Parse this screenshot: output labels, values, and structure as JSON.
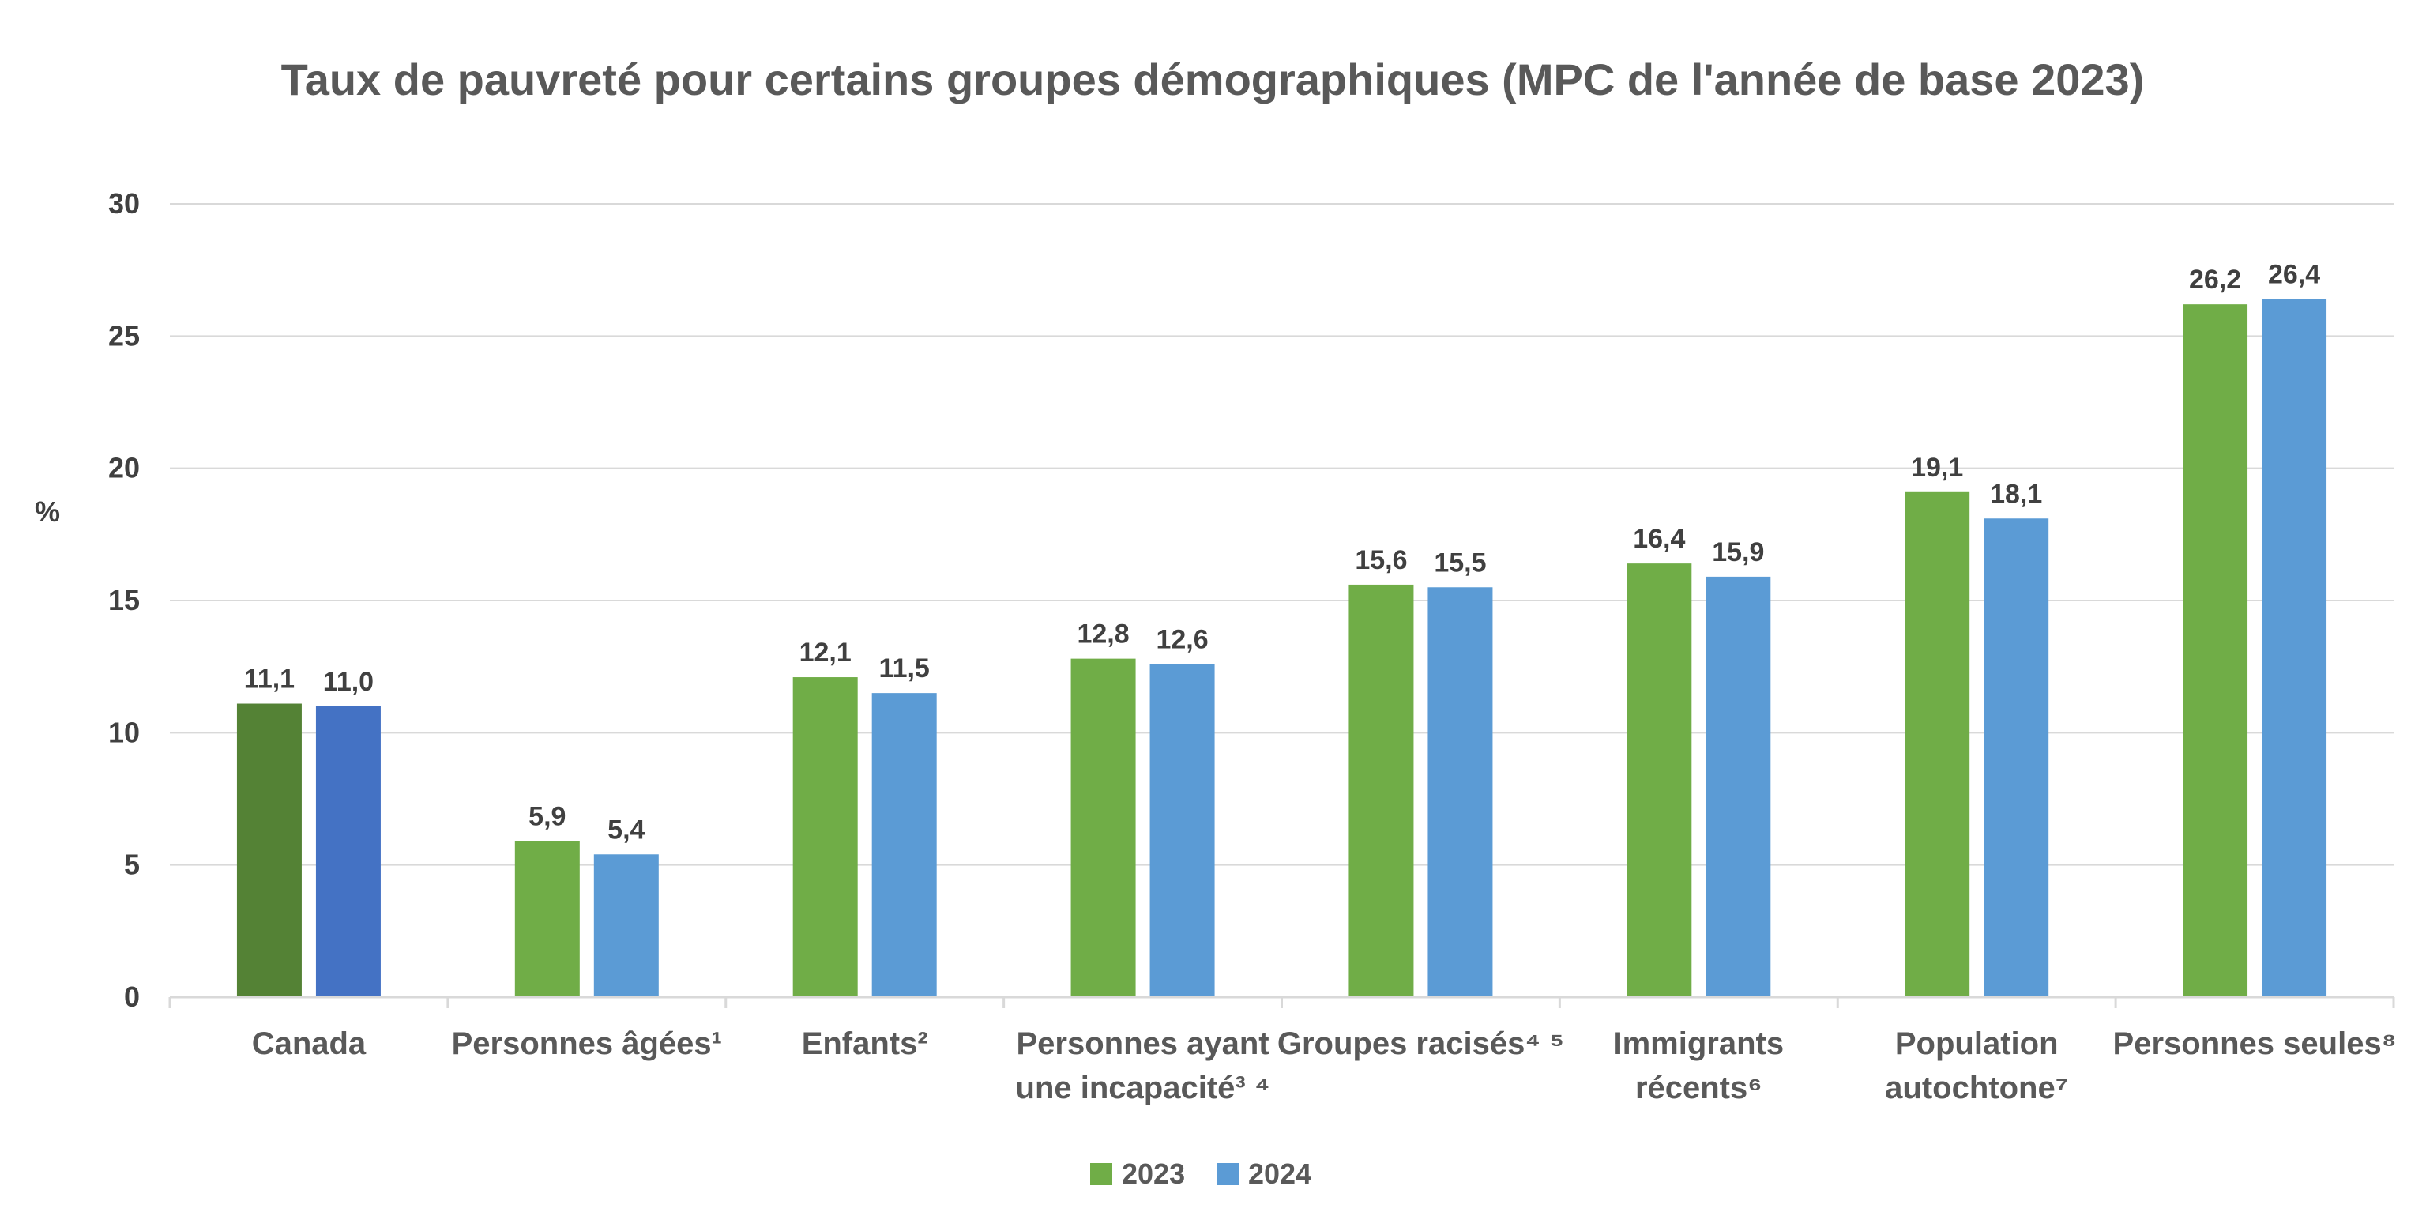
{
  "chart_data": {
    "type": "bar",
    "title": "Taux de pauvreté pour certains groupes démographiques (MPC de l'année de base 2023)",
    "ylabel": "%",
    "ylim": [
      0,
      30
    ],
    "yticks": [
      0,
      5,
      10,
      15,
      20,
      25,
      30
    ],
    "grid": true,
    "legend_position": "bottom",
    "categories": [
      [
        "Canada"
      ],
      [
        "Personnes âgées¹"
      ],
      [
        "Enfants²"
      ],
      [
        "Personnes ayant",
        "une incapacité³ ⁴"
      ],
      [
        "Groupes racisés⁴ ⁵"
      ],
      [
        "Immigrants",
        "récents⁶"
      ],
      [
        "Population",
        "autochtone⁷"
      ],
      [
        "Personnes seules⁸"
      ]
    ],
    "series": [
      {
        "name": "2023",
        "color": "#70ad47",
        "highlight_color": "#548235",
        "values": [
          11.1,
          5.9,
          12.1,
          12.8,
          15.6,
          16.4,
          19.1,
          26.2
        ],
        "labels": [
          "11,1",
          "5,9",
          "12,1",
          "12,8",
          "15,6",
          "16,4",
          "19,1",
          "26,2"
        ]
      },
      {
        "name": "2024",
        "color": "#5b9bd5",
        "highlight_color": "#4472c4",
        "values": [
          11.0,
          5.4,
          11.5,
          12.6,
          15.5,
          15.9,
          18.1,
          26.4
        ],
        "labels": [
          "11,0",
          "5,4",
          "11,5",
          "12,6",
          "15,5",
          "15,9",
          "18,1",
          "26,4"
        ]
      }
    ],
    "highlighted_category_index": 0
  }
}
